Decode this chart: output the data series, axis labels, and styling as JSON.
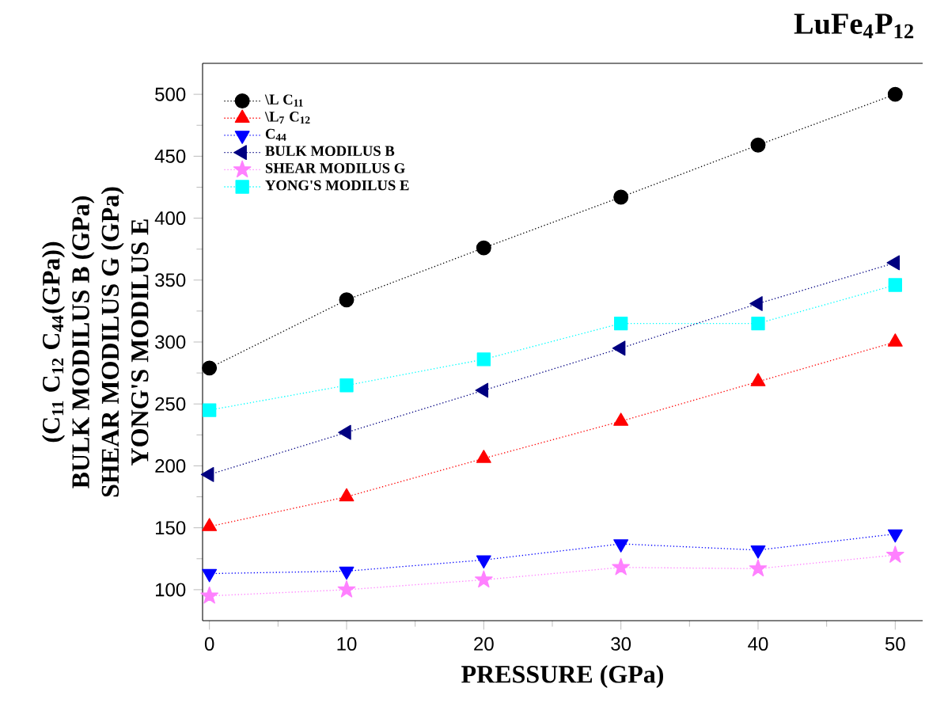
{
  "chart_data": {
    "type": "line",
    "title": "LuFe$_{4}$P$_{12}$",
    "xlabel": "PRESSURE (GPa)",
    "ylabel": [
      "(C$_{11}$ C$_{12}$ C$_{44}$(GPa))",
      "BULK MODILUS B (GPa)",
      "SHEAR MODILUS G (GPa)",
      "YONG'S MODILUS E"
    ],
    "x": [
      0,
      10,
      20,
      30,
      40,
      50
    ],
    "series": [
      {
        "name": "\\L C$_{11}$",
        "color": "#000000",
        "marker": "circle",
        "values": [
          279,
          334,
          376,
          417,
          459,
          500
        ]
      },
      {
        "name": "\\L$_{7}$ C$_{12}$",
        "color": "#ff0000",
        "marker": "triangle",
        "values": [
          151,
          175,
          206,
          236,
          268,
          300
        ]
      },
      {
        "name": "C$_{44}$",
        "color": "#0000ff",
        "marker": "triangle down",
        "values": [
          113,
          115,
          124,
          137,
          132,
          145
        ]
      },
      {
        "name": "BULK MODILUS B",
        "color": "#000080",
        "marker": "triangle left",
        "values": [
          193,
          227,
          261,
          295,
          331,
          364
        ]
      },
      {
        "name": "SHEAR MODILUS G",
        "color": "#ff80ff",
        "marker": "star",
        "values": [
          95,
          100,
          108,
          118,
          117,
          128
        ]
      },
      {
        "name": "YONG'S MODILUS E",
        "color": "#00ffff",
        "marker": "square",
        "values": [
          245,
          265,
          286,
          315,
          315,
          346
        ]
      }
    ],
    "xlim": [
      -0.5,
      52
    ],
    "ylim": [
      75,
      525
    ],
    "xticks": [
      0,
      10,
      20,
      30,
      40,
      50
    ],
    "yticks": [
      100,
      150,
      200,
      250,
      300,
      350,
      400,
      450,
      500
    ],
    "line_style": "dotted",
    "legend": "top left"
  }
}
